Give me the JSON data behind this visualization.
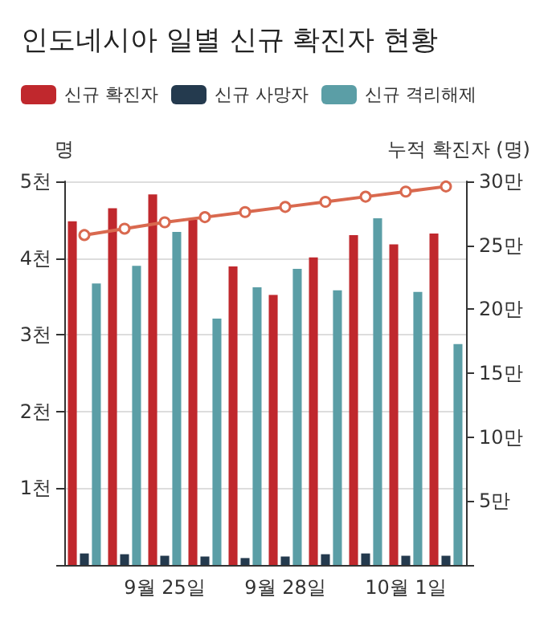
{
  "chart_data": {
    "type": "bar",
    "title": "인도네시아 일별 신규 확진자 현황",
    "ylabel": "명",
    "y2label": "누적 확진자 (명)",
    "categories": [
      null,
      null,
      "9월 25일",
      null,
      null,
      "9월 28일",
      null,
      null,
      "10월 1일",
      null
    ],
    "series": [
      {
        "name": "신규 확진자",
        "color": "#c0282d",
        "values": [
          4.48,
          4.65,
          4.83,
          4.5,
          3.89,
          3.52,
          4.01,
          4.3,
          4.18,
          4.32
        ]
      },
      {
        "name": "신규 사망자",
        "color": "#243a4e",
        "values": [
          0.15,
          0.14,
          0.12,
          0.11,
          0.09,
          0.11,
          0.14,
          0.15,
          0.12,
          0.12
        ]
      },
      {
        "name": "신규 격리해제",
        "color": "#5b9ea6",
        "values": [
          3.67,
          3.9,
          4.34,
          3.21,
          3.62,
          3.86,
          3.58,
          4.52,
          3.56,
          2.88
        ]
      },
      {
        "type": "line",
        "axis": "y2",
        "color": "#d9694f",
        "marker": "circle",
        "values": [
          25.8,
          26.3,
          26.8,
          27.2,
          27.6,
          28.0,
          28.4,
          28.8,
          29.2,
          29.6
        ]
      }
    ],
    "ylim": [
      0,
      5
    ],
    "yticks": [
      {
        "value": 0,
        "label": null
      },
      {
        "value": 1,
        "label": "1천"
      },
      {
        "value": 2,
        "label": "2천"
      },
      {
        "value": 3,
        "label": "3천"
      },
      {
        "value": 4,
        "label": "4천"
      },
      {
        "value": 5,
        "label": "5천"
      }
    ],
    "y2lim": [
      0,
      30
    ],
    "y2ticks": [
      {
        "value": 0,
        "label": null
      },
      {
        "value": 5,
        "label": "5만"
      },
      {
        "value": 10,
        "label": "10만"
      },
      {
        "value": 15,
        "label": "15만"
      },
      {
        "value": 20,
        "label": "20만"
      },
      {
        "value": 25,
        "label": "25만"
      },
      {
        "value": 30,
        "label": "30만"
      }
    ],
    "grid": "y",
    "legend": "top left"
  }
}
